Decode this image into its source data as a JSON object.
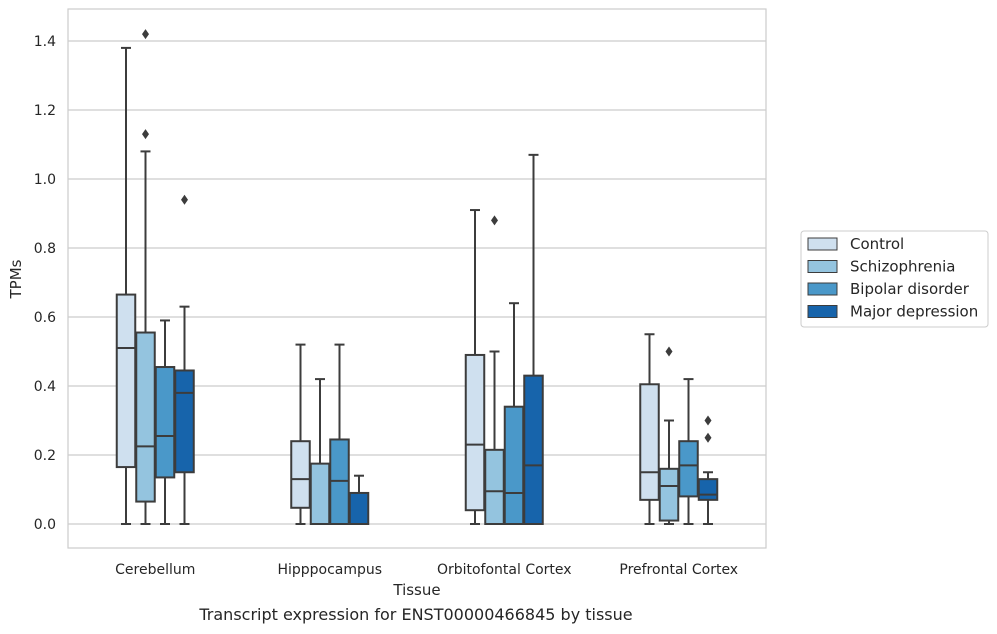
{
  "caption": "Transcript expression for ENST00000466845 by tissue",
  "chart_data": {
    "type": "boxplot",
    "xlabel": "Tissue",
    "ylabel": "TPMs",
    "ylim": [
      -0.07,
      1.49
    ],
    "yticks": [
      0.0,
      0.2,
      0.4,
      0.6,
      0.8,
      1.0,
      1.2,
      1.4
    ],
    "ytick_labels": [
      "0.0",
      "0.2",
      "0.4",
      "0.6",
      "0.8",
      "1.0",
      "1.2",
      "1.4"
    ],
    "grid": "horizontal",
    "legend_position": "right",
    "categories": [
      "Cerebellum",
      "Hipppocampus",
      "Orbitofontal Cortex",
      "Prefrontal Cortex"
    ],
    "series": [
      {
        "name": "Control",
        "color": "#cfe0ef",
        "boxes": [
          {
            "whislo": 0.0,
            "q1": 0.165,
            "med": 0.51,
            "q3": 0.665,
            "whishi": 1.38,
            "fliers": []
          },
          {
            "whislo": 0.0,
            "q1": 0.047,
            "med": 0.13,
            "q3": 0.24,
            "whishi": 0.52,
            "fliers": []
          },
          {
            "whislo": 0.0,
            "q1": 0.04,
            "med": 0.23,
            "q3": 0.49,
            "whishi": 0.91,
            "fliers": []
          },
          {
            "whislo": 0.0,
            "q1": 0.07,
            "med": 0.15,
            "q3": 0.405,
            "whishi": 0.55,
            "fliers": []
          }
        ]
      },
      {
        "name": "Schizophrenia",
        "color": "#94c4df",
        "boxes": [
          {
            "whislo": 0.0,
            "q1": 0.065,
            "med": 0.225,
            "q3": 0.555,
            "whishi": 1.08,
            "fliers": [
              1.13,
              1.42
            ]
          },
          {
            "whislo": 0.0,
            "q1": 0.0,
            "med": 0.0,
            "q3": 0.175,
            "whishi": 0.42,
            "fliers": []
          },
          {
            "whislo": 0.0,
            "q1": 0.0,
            "med": 0.095,
            "q3": 0.215,
            "whishi": 0.5,
            "fliers": [
              0.88
            ]
          },
          {
            "whislo": 0.0,
            "q1": 0.01,
            "med": 0.11,
            "q3": 0.16,
            "whishi": 0.3,
            "fliers": [
              0.5
            ]
          }
        ]
      },
      {
        "name": "Bipolar disorder",
        "color": "#4a98c9",
        "boxes": [
          {
            "whislo": 0.0,
            "q1": 0.135,
            "med": 0.255,
            "q3": 0.455,
            "whishi": 0.59,
            "fliers": []
          },
          {
            "whislo": 0.0,
            "q1": 0.0,
            "med": 0.125,
            "q3": 0.245,
            "whishi": 0.52,
            "fliers": []
          },
          {
            "whislo": 0.0,
            "q1": 0.0,
            "med": 0.09,
            "q3": 0.34,
            "whishi": 0.64,
            "fliers": []
          },
          {
            "whislo": 0.0,
            "q1": 0.08,
            "med": 0.17,
            "q3": 0.24,
            "whishi": 0.42,
            "fliers": []
          }
        ]
      },
      {
        "name": "Major depression",
        "color": "#1764ab",
        "boxes": [
          {
            "whislo": 0.0,
            "q1": 0.15,
            "med": 0.38,
            "q3": 0.445,
            "whishi": 0.63,
            "fliers": [
              0.94
            ]
          },
          {
            "whislo": 0.0,
            "q1": 0.0,
            "med": 0.0,
            "q3": 0.09,
            "whishi": 0.14,
            "fliers": []
          },
          {
            "whislo": 0.0,
            "q1": 0.0,
            "med": 0.17,
            "q3": 0.43,
            "whishi": 1.07,
            "fliers": []
          },
          {
            "whislo": 0.0,
            "q1": 0.07,
            "med": 0.085,
            "q3": 0.13,
            "whishi": 0.15,
            "fliers": [
              0.25,
              0.3
            ]
          }
        ]
      }
    ]
  }
}
